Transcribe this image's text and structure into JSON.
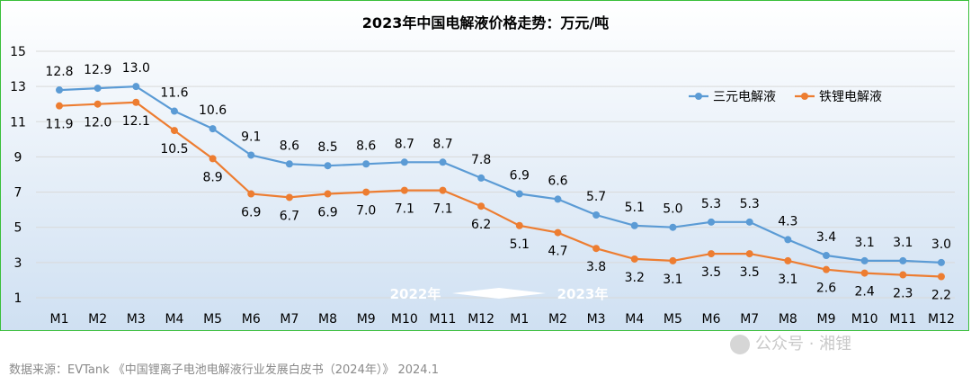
{
  "chart_data": {
    "type": "line",
    "title": "2023年中国电解液价格走势：万元/吨",
    "categories": [
      "M1",
      "M2",
      "M3",
      "M4",
      "M5",
      "M6",
      "M7",
      "M8",
      "M9",
      "M10",
      "M11",
      "M12",
      "M1",
      "M2",
      "M3",
      "M4",
      "M5",
      "M6",
      "M7",
      "M8",
      "M9",
      "M10",
      "M11",
      "M12"
    ],
    "series": [
      {
        "name": "三元电解液",
        "color": "#5b9bd5",
        "values": [
          12.8,
          12.9,
          13.0,
          11.6,
          10.6,
          9.1,
          8.6,
          8.5,
          8.6,
          8.7,
          8.7,
          7.8,
          6.9,
          6.6,
          5.7,
          5.1,
          5.0,
          5.3,
          5.3,
          4.3,
          3.4,
          3.1,
          3.1,
          3.0
        ]
      },
      {
        "name": "铁锂电解液",
        "color": "#ed7d31",
        "values": [
          11.9,
          12.0,
          12.1,
          10.5,
          8.9,
          6.9,
          6.7,
          6.9,
          7.0,
          7.1,
          7.1,
          6.2,
          5.1,
          4.7,
          3.8,
          3.2,
          3.1,
          3.5,
          3.5,
          3.1,
          2.6,
          2.4,
          2.3,
          2.2
        ]
      }
    ],
    "yticks": [
      1,
      3,
      5,
      7,
      9,
      11,
      13,
      15
    ],
    "ylim": [
      1,
      15
    ],
    "grid": true,
    "legend_position": "top-right",
    "annotation_left": "2022年",
    "annotation_right": "2023年",
    "background_gradient": [
      "#ffffff",
      "#cfe0f2"
    ]
  },
  "footer": {
    "source": "数据来源：EVTank 《中国锂离子电池电解液行业发展白皮书（2024年）》 2024.1",
    "watermark": "公众号 · 湘锂"
  }
}
